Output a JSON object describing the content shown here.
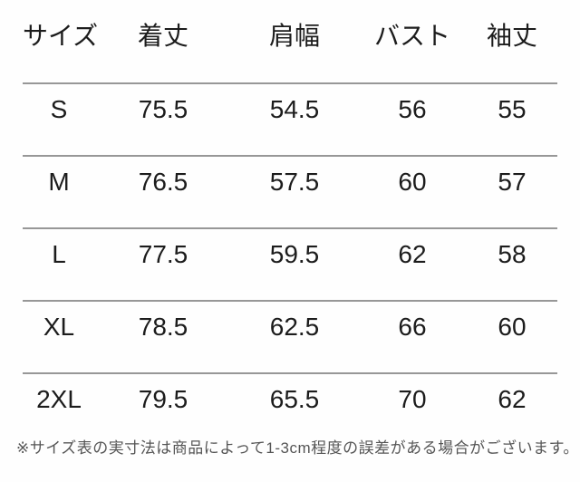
{
  "chart_data": {
    "type": "table",
    "columns": [
      "サイズ",
      "着丈",
      "肩幅",
      "バスト",
      "袖丈"
    ],
    "rows": [
      [
        "S",
        "75.5",
        "54.5",
        "56",
        "55"
      ],
      [
        "M",
        "76.5",
        "57.5",
        "60",
        "57"
      ],
      [
        "L",
        "77.5",
        "59.5",
        "62",
        "58"
      ],
      [
        "XL",
        "78.5",
        "62.5",
        "66",
        "60"
      ],
      [
        "2XL",
        "79.5",
        "65.5",
        "70",
        "62"
      ]
    ],
    "layout_hints": {
      "grid": "horizontal-dividers-only",
      "last_row_divider": false
    }
  },
  "footnote": "※サイズ表の実寸法は商品によって1-3cm程度の誤差がある場合がございます。",
  "colors": {
    "background": "#fefefe",
    "table_text": "#1c1c1c",
    "divider": "#979797",
    "footnote_text": "#555555"
  }
}
